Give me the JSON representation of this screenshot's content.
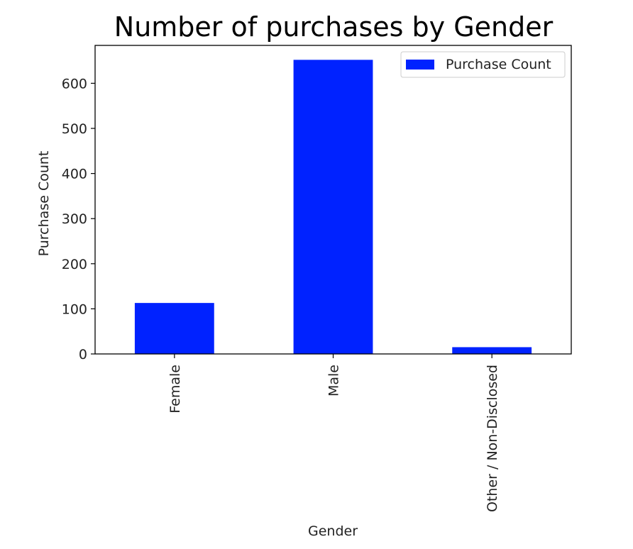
{
  "chart_data": {
    "type": "bar",
    "title": "Number of purchases by Gender",
    "xlabel": "Gender",
    "ylabel": "Purchase Count",
    "categories": [
      "Female",
      "Male",
      "Other / Non-Disclosed"
    ],
    "series": [
      {
        "name": "Purchase Count",
        "values": [
          113,
          652,
          15
        ],
        "color": "#0022ff"
      }
    ],
    "ylim": [
      0,
      684
    ],
    "yticks": [
      0,
      100,
      200,
      300,
      400,
      500,
      600
    ],
    "grid": false,
    "legend": "top-right"
  }
}
